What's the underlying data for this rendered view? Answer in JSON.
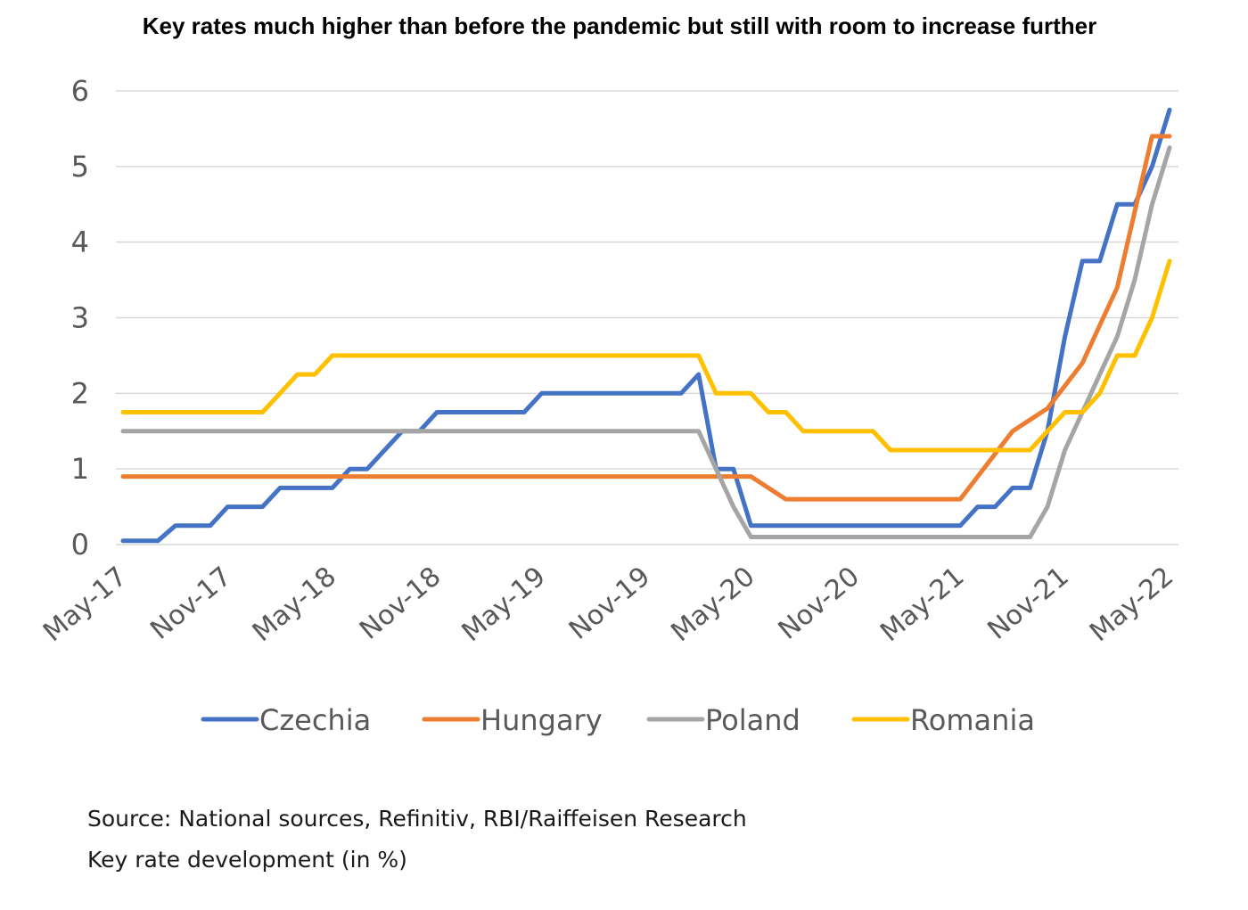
{
  "chart_data": {
    "type": "line",
    "title": "Key rates much higher than before the pandemic but still with room to increase further",
    "xlabel": "",
    "ylabel": "",
    "x_tick_labels": [
      "May-17",
      "Nov-17",
      "May-18",
      "Nov-18",
      "May-19",
      "Nov-19",
      "May-20",
      "Nov-20",
      "May-21",
      "Nov-21",
      "May-22"
    ],
    "ylim": [
      0,
      6
    ],
    "y_ticks": [
      "0",
      "1",
      "2",
      "3",
      "4",
      "5",
      "6"
    ],
    "grid": "horizontal",
    "legend_position": "bottom",
    "series": [
      {
        "name": "Czechia",
        "color": "#4472C4",
        "points": [
          [
            "2017-05",
            0.05
          ],
          [
            "2017-07",
            0.05
          ],
          [
            "2017-08",
            0.25
          ],
          [
            "2017-10",
            0.25
          ],
          [
            "2017-11",
            0.5
          ],
          [
            "2018-01",
            0.5
          ],
          [
            "2018-02",
            0.75
          ],
          [
            "2018-05",
            0.75
          ],
          [
            "2018-06",
            1.0
          ],
          [
            "2018-07",
            1.0
          ],
          [
            "2018-08",
            1.25
          ],
          [
            "2018-09",
            1.5
          ],
          [
            "2018-10",
            1.5
          ],
          [
            "2018-11",
            1.75
          ],
          [
            "2019-04",
            1.75
          ],
          [
            "2019-05",
            2.0
          ],
          [
            "2020-01",
            2.0
          ],
          [
            "2020-02",
            2.25
          ],
          [
            "2020-03",
            1.0
          ],
          [
            "2020-04",
            1.0
          ],
          [
            "2020-05",
            0.25
          ],
          [
            "2021-05",
            0.25
          ],
          [
            "2021-06",
            0.5
          ],
          [
            "2021-07",
            0.5
          ],
          [
            "2021-08",
            0.75
          ],
          [
            "2021-09",
            0.75
          ],
          [
            "2021-10",
            1.5
          ],
          [
            "2021-11",
            2.75
          ],
          [
            "2021-12",
            3.75
          ],
          [
            "2022-01",
            3.75
          ],
          [
            "2022-02",
            4.5
          ],
          [
            "2022-03",
            4.5
          ],
          [
            "2022-04",
            5.0
          ],
          [
            "2022-05",
            5.75
          ]
        ]
      },
      {
        "name": "Hungary",
        "color": "#ED7D31",
        "points": [
          [
            "2017-05",
            0.9
          ],
          [
            "2020-05",
            0.9
          ],
          [
            "2020-07",
            0.6
          ],
          [
            "2021-05",
            0.6
          ],
          [
            "2021-06",
            0.9
          ],
          [
            "2021-07",
            1.2
          ],
          [
            "2021-08",
            1.5
          ],
          [
            "2021-09",
            1.65
          ],
          [
            "2021-10",
            1.8
          ],
          [
            "2021-11",
            2.1
          ],
          [
            "2021-12",
            2.4
          ],
          [
            "2022-01",
            2.9
          ],
          [
            "2022-02",
            3.4
          ],
          [
            "2022-03",
            4.4
          ],
          [
            "2022-04",
            5.4
          ],
          [
            "2022-05",
            5.4
          ]
        ]
      },
      {
        "name": "Poland",
        "color": "#A5A5A5",
        "points": [
          [
            "2017-05",
            1.5
          ],
          [
            "2020-02",
            1.5
          ],
          [
            "2020-03",
            1.0
          ],
          [
            "2020-04",
            0.5
          ],
          [
            "2020-05",
            0.1
          ],
          [
            "2021-09",
            0.1
          ],
          [
            "2021-10",
            0.5
          ],
          [
            "2021-11",
            1.25
          ],
          [
            "2021-12",
            1.75
          ],
          [
            "2022-01",
            2.25
          ],
          [
            "2022-02",
            2.75
          ],
          [
            "2022-03",
            3.5
          ],
          [
            "2022-04",
            4.5
          ],
          [
            "2022-05",
            5.25
          ]
        ]
      },
      {
        "name": "Romania",
        "color": "#FFC000",
        "points": [
          [
            "2017-05",
            1.75
          ],
          [
            "2018-01",
            1.75
          ],
          [
            "2018-02",
            2.0
          ],
          [
            "2018-03",
            2.25
          ],
          [
            "2018-04",
            2.25
          ],
          [
            "2018-05",
            2.5
          ],
          [
            "2020-02",
            2.5
          ],
          [
            "2020-03",
            2.0
          ],
          [
            "2020-05",
            2.0
          ],
          [
            "2020-06",
            1.75
          ],
          [
            "2020-07",
            1.75
          ],
          [
            "2020-08",
            1.5
          ],
          [
            "2020-12",
            1.5
          ],
          [
            "2021-01",
            1.25
          ],
          [
            "2021-09",
            1.25
          ],
          [
            "2021-10",
            1.5
          ],
          [
            "2021-11",
            1.75
          ],
          [
            "2021-12",
            1.75
          ],
          [
            "2022-01",
            2.0
          ],
          [
            "2022-02",
            2.5
          ],
          [
            "2022-03",
            2.5
          ],
          [
            "2022-04",
            3.0
          ],
          [
            "2022-05",
            3.75
          ]
        ]
      }
    ]
  },
  "footnotes": {
    "source": "Source: National sources, Refinitiv, RBI/Raiffeisen Research",
    "caption": "Key rate development (in %)"
  }
}
